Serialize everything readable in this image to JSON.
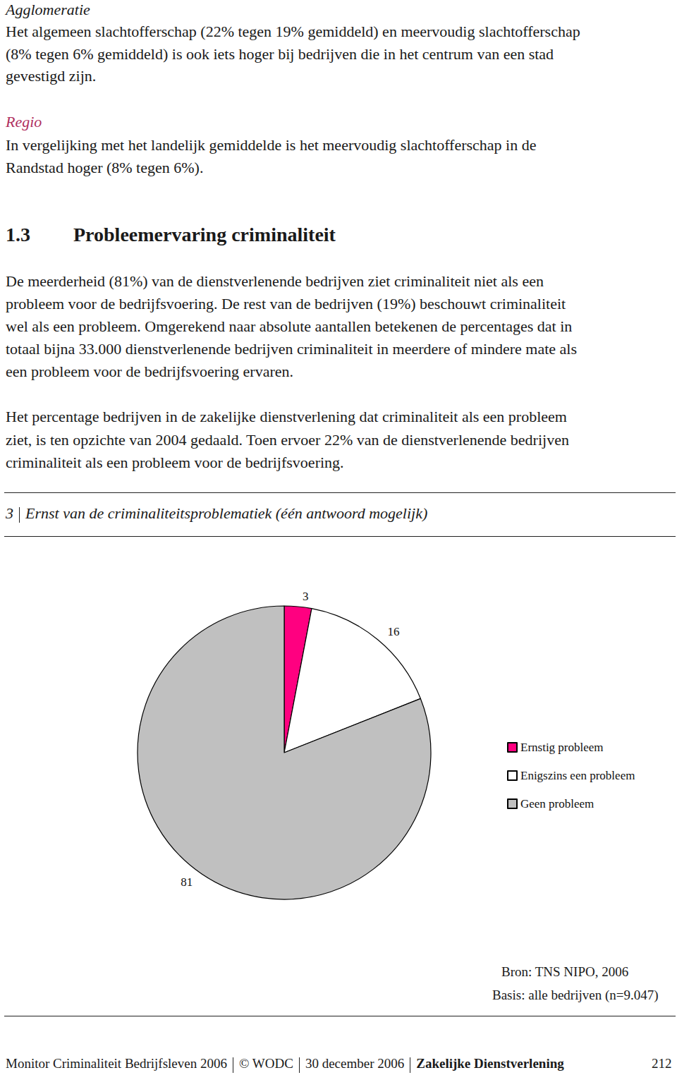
{
  "page": {
    "agglomeratie": {
      "heading": "Agglomeratie",
      "lines": [
        "Het algemeen slachtofferschap (22% tegen 19% gemiddeld) en meervoudig slachtofferschap",
        "(8% tegen 6% gemiddeld) is ook iets hoger bij bedrijven die in het centrum van een stad",
        "gevestigd zijn."
      ]
    },
    "regio": {
      "heading": "Regio",
      "lines": [
        "In vergelijking met het landelijk gemiddelde is het meervoudig slachtofferschap in de",
        "Randstad hoger (8% tegen 6%)."
      ]
    },
    "section": {
      "number": "1.3",
      "title": "Probleemervaring criminaliteit",
      "paragraphs": [
        [
          "De meerderheid (81%) van de dienstverlenende bedrijven ziet criminaliteit niet als een",
          "probleem voor de bedrijfsvoering. De rest van de bedrijven (19%) beschouwt criminaliteit",
          "wel als een probleem. Omgerekend naar absolute aantallen betekenen de percentages dat in",
          "totaal bijna 33.000 dienstverlenende bedrijven criminaliteit in meerdere of mindere mate als",
          "een probleem voor de bedrijfsvoering ervaren."
        ],
        [
          "Het percentage bedrijven in de zakelijke dienstverlening dat criminaliteit als een probleem",
          "ziet, is ten opzichte van 2004 gedaald. Toen ervoer 22% van de dienstverlenende bedrijven",
          "criminaliteit als een probleem voor de bedrijfsvoering."
        ]
      ]
    },
    "figure": {
      "number": "3",
      "caption": "Ernst van de criminaliteitsproblematiek (één antwoord mogelijk)",
      "source": "Bron: TNS NIPO, 2006",
      "basis": "Basis: alle bedrijven (n=9.047)"
    },
    "footer": {
      "parts": [
        "Monitor Criminaliteit Bedrijfsleven 2006",
        "© WODC",
        "30 december 2006"
      ],
      "section": "Zakelijke Dienstverlening",
      "page_number": "212"
    }
  },
  "chart_data": {
    "type": "pie",
    "categories": [
      "Ernstig probleem",
      "Enigszins een probleem",
      "Geen probleem"
    ],
    "values": [
      3,
      16,
      81
    ],
    "colors": [
      "#ff0080",
      "#ffffff",
      "#c0c0c0"
    ],
    "data_labels": true,
    "legend": "right"
  }
}
